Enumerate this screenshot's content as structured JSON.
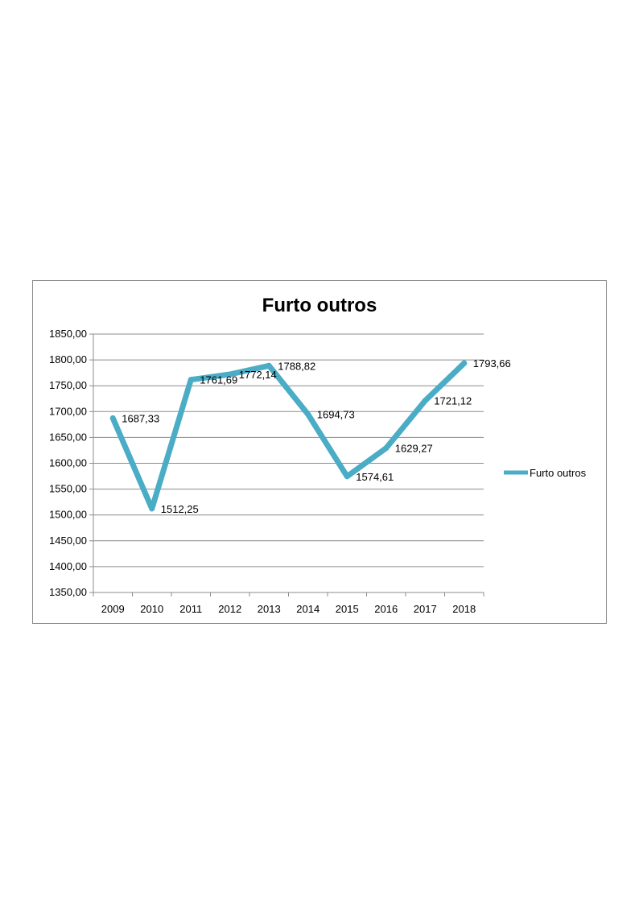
{
  "chart_data": {
    "type": "line",
    "title": "Furto outros",
    "xlabel": "",
    "ylabel": "",
    "categories": [
      "2009",
      "2010",
      "2011",
      "2012",
      "2013",
      "2014",
      "2015",
      "2016",
      "2017",
      "2018"
    ],
    "series": [
      {
        "name": "Furto outros",
        "color": "#4BACC6",
        "values": [
          1687.33,
          1512.25,
          1761.69,
          1772.14,
          1788.82,
          1694.73,
          1574.61,
          1629.27,
          1721.12,
          1793.66
        ],
        "data_labels": [
          "1687,33",
          "1512,25",
          "1761,69",
          "1772,14",
          "1788,82",
          "1694,73",
          "1574,61",
          "1629,27",
          "1721,12",
          "1793,66"
        ]
      }
    ],
    "ylim": [
      1350,
      1850
    ],
    "y_ticks": [
      1350,
      1400,
      1450,
      1500,
      1550,
      1600,
      1650,
      1700,
      1750,
      1800,
      1850
    ],
    "y_tick_labels": [
      "1350,00",
      "1400,00",
      "1450,00",
      "1500,00",
      "1550,00",
      "1600,00",
      "1650,00",
      "1700,00",
      "1750,00",
      "1800,00",
      "1850,00"
    ],
    "grid": true,
    "legend_position": "right"
  }
}
